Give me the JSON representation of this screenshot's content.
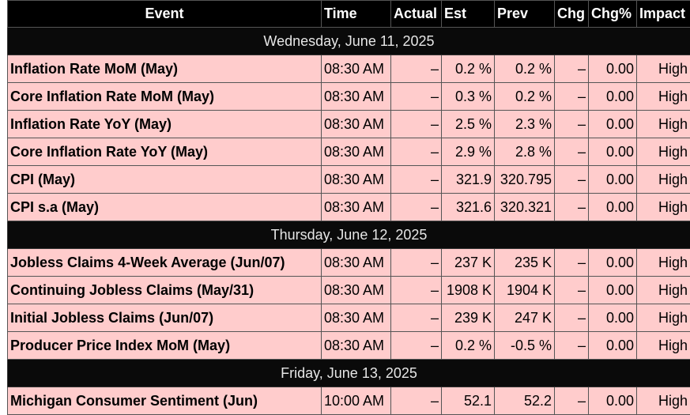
{
  "headers": {
    "event": "Event",
    "time": "Time",
    "actual": "Actual",
    "est": "Est",
    "prev": "Prev",
    "chg": "Chg",
    "chg_pct": "Chg%",
    "impact": "Impact"
  },
  "groups": [
    {
      "date": "Wednesday, June 11, 2025",
      "rows": [
        {
          "event": "Inflation Rate MoM (May)",
          "time": "08:30 AM",
          "actual": "–",
          "est": "0.2 %",
          "prev": "0.2 %",
          "chg": "–",
          "chg_pct": "0.00",
          "impact": "High"
        },
        {
          "event": "Core Inflation Rate MoM (May)",
          "time": "08:30 AM",
          "actual": "–",
          "est": "0.3 %",
          "prev": "0.2 %",
          "chg": "–",
          "chg_pct": "0.00",
          "impact": "High"
        },
        {
          "event": "Inflation Rate YoY (May)",
          "time": "08:30 AM",
          "actual": "–",
          "est": "2.5 %",
          "prev": "2.3 %",
          "chg": "–",
          "chg_pct": "0.00",
          "impact": "High"
        },
        {
          "event": "Core Inflation Rate YoY (May)",
          "time": "08:30 AM",
          "actual": "–",
          "est": "2.9 %",
          "prev": "2.8 %",
          "chg": "–",
          "chg_pct": "0.00",
          "impact": "High"
        },
        {
          "event": "CPI (May)",
          "time": "08:30 AM",
          "actual": "–",
          "est": "321.9",
          "prev": "320.795",
          "chg": "–",
          "chg_pct": "0.00",
          "impact": "High"
        },
        {
          "event": "CPI s.a (May)",
          "time": "08:30 AM",
          "actual": "–",
          "est": "321.6",
          "prev": "320.321",
          "chg": "–",
          "chg_pct": "0.00",
          "impact": "High"
        }
      ]
    },
    {
      "date": "Thursday, June 12, 2025",
      "rows": [
        {
          "event": "Jobless Claims 4-Week Average (Jun/07)",
          "time": "08:30 AM",
          "actual": "–",
          "est": "237 K",
          "prev": "235 K",
          "chg": "–",
          "chg_pct": "0.00",
          "impact": "High"
        },
        {
          "event": "Continuing Jobless Claims (May/31)",
          "time": "08:30 AM",
          "actual": "–",
          "est": "1908 K",
          "prev": "1904 K",
          "chg": "–",
          "chg_pct": "0.00",
          "impact": "High"
        },
        {
          "event": "Initial Jobless Claims (Jun/07)",
          "time": "08:30 AM",
          "actual": "–",
          "est": "239 K",
          "prev": "247 K",
          "chg": "–",
          "chg_pct": "0.00",
          "impact": "High"
        },
        {
          "event": "Producer Price Index MoM (May)",
          "time": "08:30 AM",
          "actual": "–",
          "est": "0.2 %",
          "prev": "-0.5 %",
          "chg": "–",
          "chg_pct": "0.00",
          "impact": "High"
        }
      ]
    },
    {
      "date": "Friday, June 13, 2025",
      "rows": [
        {
          "event": "Michigan Consumer Sentiment (Jun)",
          "time": "10:00 AM",
          "actual": "–",
          "est": "52.1",
          "prev": "52.2",
          "chg": "–",
          "chg_pct": "0.00",
          "impact": "High"
        }
      ]
    }
  ]
}
